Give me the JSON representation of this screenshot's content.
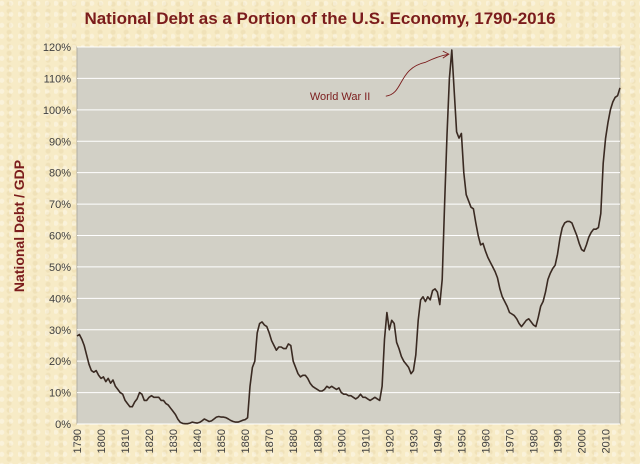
{
  "chart_data": {
    "type": "line",
    "title": "National Debt as a Portion of the U.S. Economy, 1790-2016",
    "ylabel": "National Debt / GDP",
    "xlabel": "",
    "xlim": [
      1790,
      2016
    ],
    "ylim": [
      0,
      120
    ],
    "grid": "horizontal",
    "yticks": [
      "0%",
      "10%",
      "20%",
      "30%",
      "40%",
      "50%",
      "60%",
      "70%",
      "80%",
      "90%",
      "100%",
      "110%",
      "120%"
    ],
    "xticks": [
      "1790",
      "1800",
      "1810",
      "1820",
      "1830",
      "1840",
      "1850",
      "1860",
      "1870",
      "1880",
      "1890",
      "1900",
      "1910",
      "1920",
      "1930",
      "1940",
      "1950",
      "1960",
      "1970",
      "1980",
      "1990",
      "2000",
      "2010"
    ],
    "annotation": {
      "text": "World War II",
      "x": 1946,
      "y": 119
    },
    "line_color": "#3a2a22",
    "annotation_color": "#7b1c1c",
    "series": [
      {
        "points": [
          [
            1790,
            28
          ],
          [
            1791,
            28.5
          ],
          [
            1792,
            27
          ],
          [
            1793,
            25
          ],
          [
            1794,
            22
          ],
          [
            1795,
            19
          ],
          [
            1796,
            17
          ],
          [
            1797,
            16.5
          ],
          [
            1798,
            17
          ],
          [
            1799,
            15.5
          ],
          [
            1800,
            14.5
          ],
          [
            1801,
            15
          ],
          [
            1802,
            13.5
          ],
          [
            1803,
            14.5
          ],
          [
            1804,
            13
          ],
          [
            1805,
            14
          ],
          [
            1806,
            12
          ],
          [
            1807,
            11
          ],
          [
            1808,
            10
          ],
          [
            1809,
            9.5
          ],
          [
            1810,
            7.5
          ],
          [
            1811,
            6.5
          ],
          [
            1812,
            5.5
          ],
          [
            1813,
            5.5
          ],
          [
            1814,
            7
          ],
          [
            1815,
            8
          ],
          [
            1816,
            10
          ],
          [
            1817,
            9.5
          ],
          [
            1818,
            7.5
          ],
          [
            1819,
            7.5
          ],
          [
            1820,
            8.5
          ],
          [
            1821,
            9
          ],
          [
            1822,
            8.5
          ],
          [
            1823,
            8.5
          ],
          [
            1824,
            8.5
          ],
          [
            1825,
            7.5
          ],
          [
            1826,
            7.5
          ],
          [
            1827,
            6.5
          ],
          [
            1828,
            6
          ],
          [
            1829,
            5
          ],
          [
            1830,
            4
          ],
          [
            1831,
            3
          ],
          [
            1832,
            1.5
          ],
          [
            1833,
            0.5
          ],
          [
            1834,
            0.2
          ],
          [
            1835,
            0.1
          ],
          [
            1836,
            0.1
          ],
          [
            1837,
            0.3
          ],
          [
            1838,
            0.6
          ],
          [
            1839,
            0.4
          ],
          [
            1840,
            0.3
          ],
          [
            1841,
            0.5
          ],
          [
            1842,
            1
          ],
          [
            1843,
            1.6
          ],
          [
            1844,
            1.2
          ],
          [
            1845,
            0.8
          ],
          [
            1846,
            1
          ],
          [
            1847,
            1.6
          ],
          [
            1848,
            2.2
          ],
          [
            1849,
            2.4
          ],
          [
            1850,
            2.2
          ],
          [
            1851,
            2.2
          ],
          [
            1852,
            2
          ],
          [
            1853,
            1.6
          ],
          [
            1854,
            1.1
          ],
          [
            1855,
            0.8
          ],
          [
            1856,
            0.6
          ],
          [
            1857,
            0.6
          ],
          [
            1858,
            0.9
          ],
          [
            1859,
            1.2
          ],
          [
            1860,
            1.4
          ],
          [
            1861,
            2
          ],
          [
            1862,
            12
          ],
          [
            1863,
            18
          ],
          [
            1864,
            20
          ],
          [
            1865,
            29
          ],
          [
            1866,
            32
          ],
          [
            1867,
            32.5
          ],
          [
            1868,
            31.5
          ],
          [
            1869,
            31
          ],
          [
            1870,
            29
          ],
          [
            1871,
            26.5
          ],
          [
            1872,
            25
          ],
          [
            1873,
            23.5
          ],
          [
            1874,
            24.5
          ],
          [
            1875,
            24.5
          ],
          [
            1876,
            24
          ],
          [
            1877,
            24
          ],
          [
            1878,
            25.5
          ],
          [
            1879,
            25
          ],
          [
            1880,
            20
          ],
          [
            1881,
            18
          ],
          [
            1882,
            16
          ],
          [
            1883,
            15
          ],
          [
            1884,
            15.5
          ],
          [
            1885,
            15.5
          ],
          [
            1886,
            14.5
          ],
          [
            1887,
            13
          ],
          [
            1888,
            12
          ],
          [
            1889,
            11.5
          ],
          [
            1890,
            11
          ],
          [
            1891,
            10.5
          ],
          [
            1892,
            10.5
          ],
          [
            1893,
            11
          ],
          [
            1894,
            12
          ],
          [
            1895,
            11.5
          ],
          [
            1896,
            12
          ],
          [
            1897,
            11.5
          ],
          [
            1898,
            11
          ],
          [
            1899,
            11.5
          ],
          [
            1900,
            10
          ],
          [
            1901,
            9.5
          ],
          [
            1902,
            9.5
          ],
          [
            1903,
            9
          ],
          [
            1904,
            9
          ],
          [
            1905,
            8.5
          ],
          [
            1906,
            8
          ],
          [
            1907,
            8.5
          ],
          [
            1908,
            9.5
          ],
          [
            1909,
            8.5
          ],
          [
            1910,
            8.5
          ],
          [
            1911,
            8
          ],
          [
            1912,
            7.5
          ],
          [
            1913,
            8
          ],
          [
            1914,
            8.5
          ],
          [
            1915,
            8
          ],
          [
            1916,
            7.5
          ],
          [
            1917,
            12
          ],
          [
            1918,
            27
          ],
          [
            1919,
            35.5
          ],
          [
            1920,
            30
          ],
          [
            1921,
            33
          ],
          [
            1922,
            32
          ],
          [
            1923,
            26
          ],
          [
            1924,
            24
          ],
          [
            1925,
            21.5
          ],
          [
            1926,
            20
          ],
          [
            1927,
            19
          ],
          [
            1928,
            18
          ],
          [
            1929,
            16
          ],
          [
            1930,
            17
          ],
          [
            1931,
            22
          ],
          [
            1932,
            33
          ],
          [
            1933,
            39.5
          ],
          [
            1934,
            40.5
          ],
          [
            1935,
            39
          ],
          [
            1936,
            40.5
          ],
          [
            1937,
            39.5
          ],
          [
            1938,
            42.5
          ],
          [
            1939,
            43
          ],
          [
            1940,
            42
          ],
          [
            1941,
            38
          ],
          [
            1942,
            46
          ],
          [
            1943,
            70
          ],
          [
            1944,
            92
          ],
          [
            1945,
            110
          ],
          [
            1946,
            119
          ],
          [
            1947,
            106
          ],
          [
            1948,
            93
          ],
          [
            1949,
            91
          ],
          [
            1950,
            92.5
          ],
          [
            1951,
            80
          ],
          [
            1952,
            73
          ],
          [
            1953,
            71
          ],
          [
            1954,
            69
          ],
          [
            1955,
            68.5
          ],
          [
            1956,
            64
          ],
          [
            1957,
            60
          ],
          [
            1958,
            57
          ],
          [
            1959,
            57.5
          ],
          [
            1960,
            55
          ],
          [
            1961,
            53
          ],
          [
            1962,
            51.5
          ],
          [
            1963,
            50
          ],
          [
            1964,
            48.5
          ],
          [
            1965,
            46.5
          ],
          [
            1966,
            43
          ],
          [
            1967,
            40.5
          ],
          [
            1968,
            39
          ],
          [
            1969,
            37.5
          ],
          [
            1970,
            35.5
          ],
          [
            1971,
            35
          ],
          [
            1972,
            34.5
          ],
          [
            1973,
            33.5
          ],
          [
            1974,
            32
          ],
          [
            1975,
            31
          ],
          [
            1976,
            32
          ],
          [
            1977,
            33
          ],
          [
            1978,
            33.5
          ],
          [
            1979,
            32.5
          ],
          [
            1980,
            31.5
          ],
          [
            1981,
            31
          ],
          [
            1982,
            34
          ],
          [
            1983,
            37.5
          ],
          [
            1984,
            39
          ],
          [
            1985,
            42
          ],
          [
            1986,
            46
          ],
          [
            1987,
            48
          ],
          [
            1988,
            49.5
          ],
          [
            1989,
            50.5
          ],
          [
            1990,
            54
          ],
          [
            1991,
            59
          ],
          [
            1992,
            62.5
          ],
          [
            1993,
            64
          ],
          [
            1994,
            64.5
          ],
          [
            1995,
            64.5
          ],
          [
            1996,
            64
          ],
          [
            1997,
            62
          ],
          [
            1998,
            60
          ],
          [
            1999,
            57.5
          ],
          [
            2000,
            55.5
          ],
          [
            2001,
            55
          ],
          [
            2002,
            57
          ],
          [
            2003,
            59.5
          ],
          [
            2004,
            61
          ],
          [
            2005,
            62
          ],
          [
            2006,
            62
          ],
          [
            2007,
            62.5
          ],
          [
            2008,
            67
          ],
          [
            2009,
            83
          ],
          [
            2010,
            91
          ],
          [
            2011,
            96
          ],
          [
            2012,
            100
          ],
          [
            2013,
            102.5
          ],
          [
            2014,
            104
          ],
          [
            2015,
            104.5
          ],
          [
            2016,
            107
          ]
        ]
      }
    ]
  }
}
